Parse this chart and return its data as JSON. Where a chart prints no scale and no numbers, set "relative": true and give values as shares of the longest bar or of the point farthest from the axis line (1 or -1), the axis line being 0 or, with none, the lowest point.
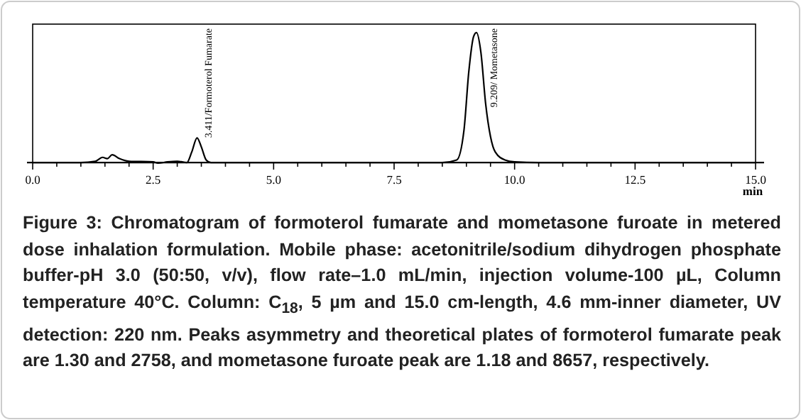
{
  "chart_data": {
    "type": "line",
    "relative": true,
    "xlabel": "min",
    "x": [
      0,
      1.0,
      1.3,
      1.45,
      1.55,
      1.65,
      1.8,
      2.0,
      2.5,
      2.6,
      2.8,
      3.0,
      3.2,
      3.3,
      3.411,
      3.5,
      3.6,
      3.7,
      8.5,
      8.8,
      8.95,
      9.05,
      9.15,
      9.209,
      9.3,
      9.4,
      9.5,
      9.6,
      9.8,
      10.0,
      10.5,
      15.0
    ],
    "series": [
      {
        "color": "#000000",
        "values": [
          0,
          0,
          0.01,
          0.04,
          0.03,
          0.06,
          0.03,
          0.01,
          0.005,
          -0.005,
          0.005,
          0.01,
          0,
          0.08,
          0.19,
          0.12,
          0.02,
          0,
          0,
          0.02,
          0.25,
          0.7,
          0.97,
          1.0,
          0.85,
          0.45,
          0.2,
          0.08,
          0.02,
          0.005,
          0,
          0
        ]
      }
    ],
    "xlim": [
      0,
      15
    ],
    "xticks": [
      {
        "value": 0,
        "label": "0.0"
      },
      {
        "value": 0.5,
        "label": null
      },
      {
        "value": 1,
        "label": null
      },
      {
        "value": 1.5,
        "label": null
      },
      {
        "value": 2,
        "label": null
      },
      2.5,
      {
        "value": 3,
        "label": null
      },
      {
        "value": 3.5,
        "label": null
      },
      {
        "value": 4,
        "label": null
      },
      {
        "value": 4.5,
        "label": null
      },
      {
        "value": 5,
        "label": "5.0"
      },
      {
        "value": 5.5,
        "label": null
      },
      {
        "value": 6,
        "label": null
      },
      {
        "value": 6.5,
        "label": null
      },
      {
        "value": 7,
        "label": null
      },
      7.5,
      {
        "value": 8,
        "label": null
      },
      {
        "value": 8.5,
        "label": null
      },
      {
        "value": 9,
        "label": null
      },
      {
        "value": 9.5,
        "label": null
      },
      {
        "value": 10,
        "label": "10.0"
      },
      {
        "value": 10.5,
        "label": null
      },
      {
        "value": 11,
        "label": null
      },
      {
        "value": 11.5,
        "label": null
      },
      {
        "value": 12,
        "label": null
      },
      12.5,
      {
        "value": 13,
        "label": null
      },
      {
        "value": 13.5,
        "label": null
      },
      {
        "value": 14,
        "label": null
      },
      {
        "value": 14.5,
        "label": null
      },
      {
        "value": 15,
        "label": "15.0"
      }
    ],
    "tick_labels": "x",
    "grid": false,
    "marker": "none",
    "line_style": "solid",
    "annotations": [
      {
        "text": "3.411/Formoterol Fumarate",
        "x": 3.411,
        "y": 0.19
      },
      {
        "text": "9.209/ Mometasone",
        "x": 9.209,
        "y": 1.0
      },
      "Figure 3: Chromatogram of formoterol fumarate and mometasone furoate in metered dose inhalation formulation. Mobile phase: acetonitrile/sodium dihydrogen phosphate buffer-pH 3.0 (50:50, v/v), flow rate–1.0 mL/min, injection volume-100 µL, Column temperature 40°C. Column: C$_{18}$, 5 µm and 15.0 cm-length, 4.6 mm-inner diameter, UV detection: 220  nm. Peaks asymmetry and theoretical plates of formoterol fumarate peak are 1.30 and 2758, and mometasone furoate peak are 1.18 and 8657, respectively."
    ]
  }
}
